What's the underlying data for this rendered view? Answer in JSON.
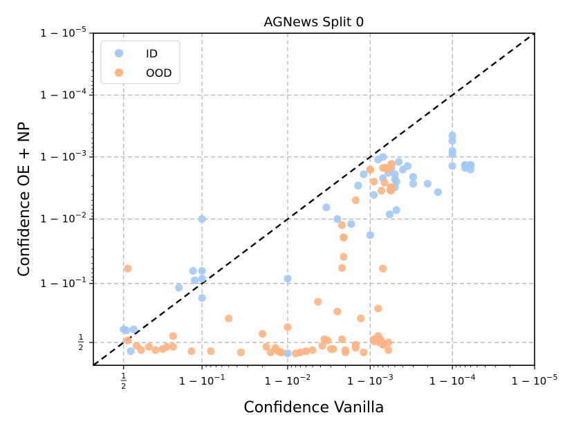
{
  "chart_data": {
    "type": "scatter",
    "title": "AGNews Split 0",
    "xlabel": "Confidence Vanilla",
    "ylabel": "Confidence OE + NP",
    "scale": "logit",
    "xlim": [
      0.3,
      0.99999
    ],
    "ylim": [
      0.3,
      0.99999
    ],
    "x_ticks": [
      {
        "value": 0.5,
        "label": "1/2"
      },
      {
        "value": 0.9,
        "label": "1 − 10^−1"
      },
      {
        "value": 0.99,
        "label": "1 − 10^−2"
      },
      {
        "value": 0.999,
        "label": "1 − 10^−3"
      },
      {
        "value": 0.9999,
        "label": "1 − 10^−4"
      },
      {
        "value": 0.99999,
        "label": "1 − 10^−5"
      }
    ],
    "y_ticks": [
      {
        "value": 0.5,
        "label": "1/2"
      },
      {
        "value": 0.9,
        "label": "1 − 10^−1"
      },
      {
        "value": 0.99,
        "label": "1 − 10^−2"
      },
      {
        "value": 0.999,
        "label": "1 − 10^−3"
      },
      {
        "value": 0.9999,
        "label": "1 − 10^−4"
      },
      {
        "value": 0.99999,
        "label": "1 − 10^−5"
      }
    ],
    "grid": true,
    "legend": "top-left",
    "diagonal": true,
    "series": [
      {
        "name": "ID",
        "color": "#a1c9f4",
        "points": [
          [
            0.5,
            0.62
          ],
          [
            0.52,
            0.61
          ],
          [
            0.57,
            0.62
          ],
          [
            0.55,
            0.42
          ],
          [
            0.825,
            0.885
          ],
          [
            0.875,
            0.935
          ],
          [
            0.88,
            0.91
          ],
          [
            0.9,
            0.99
          ],
          [
            0.9,
            0.935
          ],
          [
            0.9,
            0.915
          ],
          [
            0.9,
            0.84
          ],
          [
            0.99,
            0.915
          ],
          [
            0.99,
            0.4
          ],
          [
            0.9966,
            0.9935
          ],
          [
            0.9975,
            0.99
          ],
          [
            0.9983,
            0.988
          ],
          [
            0.9986,
            0.9971
          ],
          [
            0.999,
            0.982
          ],
          [
            0.9991,
            0.9959
          ],
          [
            0.9992,
            0.9989
          ],
          [
            0.9993,
            0.999
          ],
          [
            0.9995,
            0.9969
          ],
          [
            0.99945,
            0.9985
          ],
          [
            0.9994,
            0.9982
          ],
          [
            0.9993,
            0.9978
          ],
          [
            0.99945,
            0.9987
          ],
          [
            0.9995,
            0.9981
          ],
          [
            0.9995,
            0.9977
          ],
          [
            0.9996,
            0.9984
          ],
          [
            0.99965,
            0.9986
          ],
          [
            0.99955,
            0.9988
          ],
          [
            0.99952,
            0.9975
          ],
          [
            0.99952,
            0.9928
          ],
          [
            0.99942,
            0.9916
          ],
          [
            0.9997,
            0.9973
          ],
          [
            0.9997,
            0.9979
          ],
          [
            0.9998,
            0.9973
          ],
          [
            0.9988,
            0.9981
          ],
          [
            0.99985,
            0.9963
          ],
          [
            0.9999,
            0.99955
          ],
          [
            0.9999,
            0.9991
          ],
          [
            0.9999,
            0.99945
          ],
          [
            0.9999,
            0.9986
          ],
          [
            0.9999,
            0.9992
          ],
          [
            0.99993,
            0.99865
          ],
          [
            0.99993,
            0.99865
          ],
          [
            0.99994,
            0.99865
          ],
          [
            0.99994,
            0.99865
          ],
          [
            0.99994,
            0.9984
          ],
          [
            0.99993,
            0.9985
          ]
        ]
      },
      {
        "name": "OOD",
        "color": "#ffb482",
        "points": [
          [
            0.53,
            0.94
          ],
          [
            0.53,
            0.52
          ],
          [
            0.59,
            0.47
          ],
          [
            0.62,
            0.43
          ],
          [
            0.67,
            0.46
          ],
          [
            0.71,
            0.43
          ],
          [
            0.75,
            0.44
          ],
          [
            0.8,
            0.56
          ],
          [
            0.8,
            0.46
          ],
          [
            0.77,
            0.46
          ],
          [
            0.87,
            0.42
          ],
          [
            0.92,
            0.42
          ],
          [
            0.95,
            0.71
          ],
          [
            0.964,
            0.41
          ],
          [
            0.98,
            0.58
          ],
          [
            0.982,
            0.46
          ],
          [
            0.984,
            0.41
          ],
          [
            0.986,
            0.45
          ],
          [
            0.987,
            0.42
          ],
          [
            0.988,
            0.41
          ],
          [
            0.988,
            0.41
          ],
          [
            0.99,
            0.64
          ],
          [
            0.992,
            0.4
          ],
          [
            0.993,
            0.41
          ],
          [
            0.994,
            0.42
          ],
          [
            0.995,
            0.43
          ],
          [
            0.9957,
            0.82
          ],
          [
            0.9962,
            0.47
          ],
          [
            0.9964,
            0.53
          ],
          [
            0.9967,
            0.52
          ],
          [
            0.997,
            0.44
          ],
          [
            0.9972,
            0.44
          ],
          [
            0.9975,
            0.76
          ],
          [
            0.9978,
            0.53
          ],
          [
            0.998,
            0.43
          ],
          [
            0.998,
            0.41
          ],
          [
            0.9978,
            0.9875
          ],
          [
            0.9979,
            0.9802
          ],
          [
            0.9979,
            0.9805
          ],
          [
            0.9979,
            0.9605
          ],
          [
            0.9978,
            0.9412
          ],
          [
            0.9985,
            0.995
          ],
          [
            0.9987,
            0.71
          ],
          [
            0.9985,
            0.47
          ],
          [
            0.9985,
            0.48
          ],
          [
            0.9985,
            0.45
          ],
          [
            0.9988,
            0.41
          ],
          [
            0.9991,
            0.51
          ],
          [
            0.9991,
            0.53
          ],
          [
            0.9992,
            0.78
          ],
          [
            0.9992,
            0.56
          ],
          [
            0.9993,
            0.94
          ],
          [
            0.9993,
            0.9985
          ],
          [
            0.9992,
            0.54
          ],
          [
            0.99925,
            0.5
          ],
          [
            0.99923,
            0.5
          ],
          [
            0.99925,
            0.53
          ],
          [
            0.99924,
            0.51
          ],
          [
            0.9994,
            0.9984
          ],
          [
            0.9994,
            0.43
          ],
          [
            0.9993,
            0.48
          ],
          [
            0.9993,
            0.48
          ],
          [
            0.9994,
            0.5
          ],
          [
            0.9993,
            0.49
          ],
          [
            0.999,
            0.9984
          ],
          [
            0.999,
            0.9984
          ],
          [
            0.999,
            0.9984
          ],
          [
            0.9991,
            0.9975
          ],
          [
            0.99927,
            0.9965
          ],
          [
            0.99933,
            0.9974
          ],
          [
            0.99944,
            0.9969
          ],
          [
            0.99944,
            0.9969
          ],
          [
            0.99944,
            0.9969
          ],
          [
            0.99944,
            0.9969
          ],
          [
            0.99943,
            0.9966
          ],
          [
            0.99944,
            0.9965
          ],
          [
            0.99935,
            0.9985
          ],
          [
            0.99935,
            0.9985
          ],
          [
            0.99935,
            0.9985
          ],
          [
            0.99935,
            0.9985
          ],
          [
            0.99945,
            0.9987
          ],
          [
            0.99945,
            0.9987
          ]
        ]
      }
    ]
  }
}
